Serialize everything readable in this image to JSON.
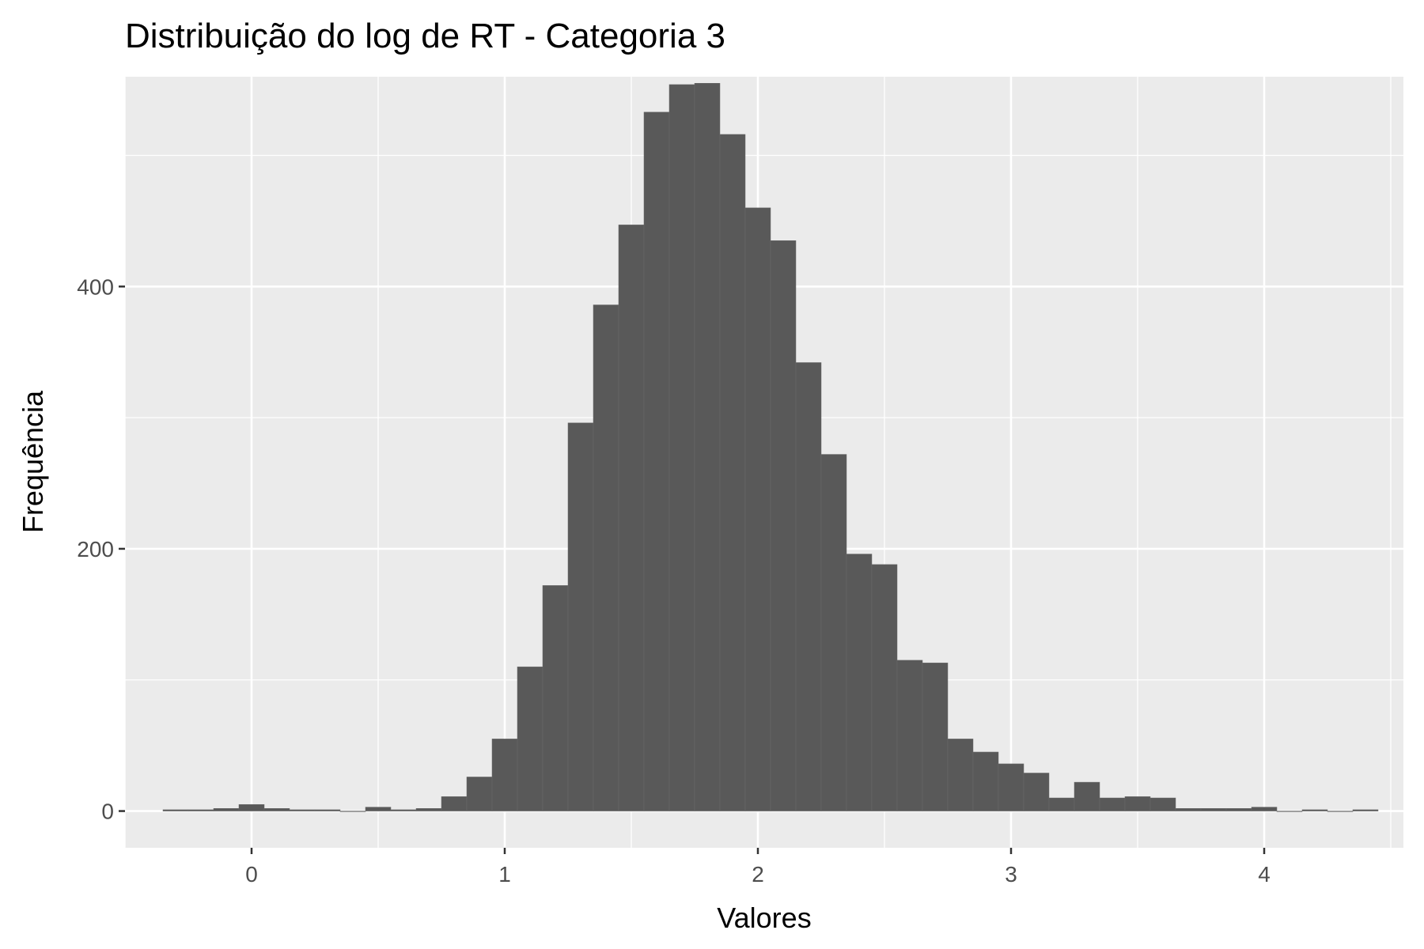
{
  "chart_data": {
    "type": "bar",
    "title": "Distribuição do log de RT - Categoria 3",
    "xlabel": "Valores",
    "ylabel": "Frequência",
    "xlim": [
      -0.5,
      4.55
    ],
    "ylim": [
      -28,
      560
    ],
    "x_ticks": [
      0,
      1,
      2,
      3,
      4
    ],
    "y_ticks": [
      0,
      200,
      400
    ],
    "bin_width": 0.1,
    "bin_start": -0.35,
    "values": [
      1,
      1,
      2,
      5,
      2,
      1,
      1,
      0,
      3,
      1,
      2,
      11,
      26,
      55,
      110,
      172,
      296,
      386,
      447,
      533,
      554,
      555,
      516,
      460,
      435,
      342,
      272,
      196,
      188,
      115,
      113,
      55,
      45,
      36,
      29,
      10,
      22,
      10,
      11,
      10,
      2,
      2,
      2,
      3,
      0,
      1,
      0,
      1
    ],
    "colors": {
      "bar": "#595959",
      "panel": "#ebebeb",
      "grid": "#ffffff"
    },
    "grid": true,
    "legend": "none"
  }
}
